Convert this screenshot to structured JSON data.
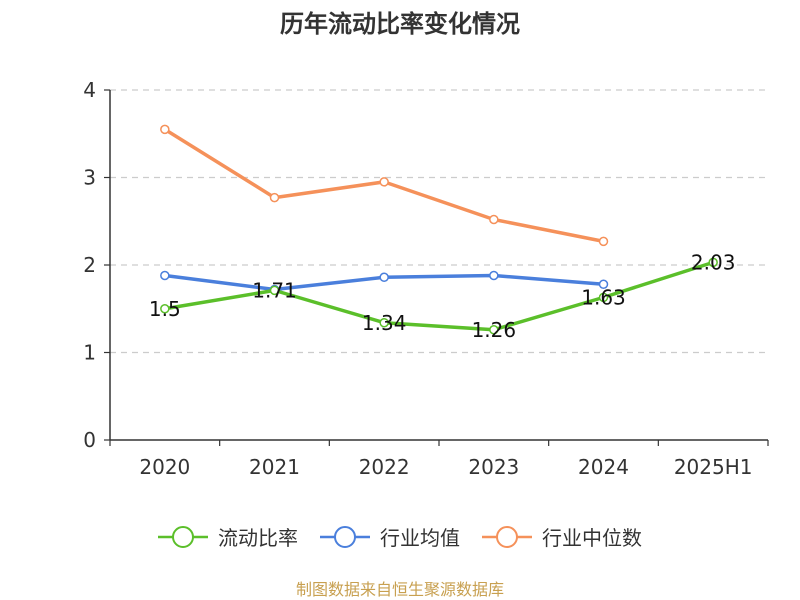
{
  "title": "历年流动比率变化情况",
  "source": "制图数据来自恒生聚源数据库",
  "colors": {
    "source": "#c8a050",
    "grid": "#cccccc",
    "axis": "#333333"
  },
  "chart_data": {
    "type": "line",
    "categories": [
      "2020",
      "2021",
      "2022",
      "2023",
      "2024",
      "2025H1"
    ],
    "ylim": [
      0,
      4
    ],
    "yticks": [
      0,
      1,
      2,
      3,
      4
    ],
    "grid": true,
    "legend_position": "bottom",
    "series": [
      {
        "name": "流动比率",
        "color": "#5bbf2a",
        "values": [
          1.5,
          1.71,
          1.34,
          1.26,
          1.63,
          2.03
        ],
        "data_labels": [
          "1.5",
          "1.71",
          "1.34",
          "1.26",
          "1.63",
          "2.03"
        ]
      },
      {
        "name": "行业均值",
        "color": "#4a7fdc",
        "values": [
          1.88,
          1.72,
          1.86,
          1.88,
          1.78,
          null
        ]
      },
      {
        "name": "行业中位数",
        "color": "#f5915a",
        "values": [
          3.55,
          2.77,
          2.95,
          2.52,
          2.27,
          null
        ]
      }
    ]
  }
}
